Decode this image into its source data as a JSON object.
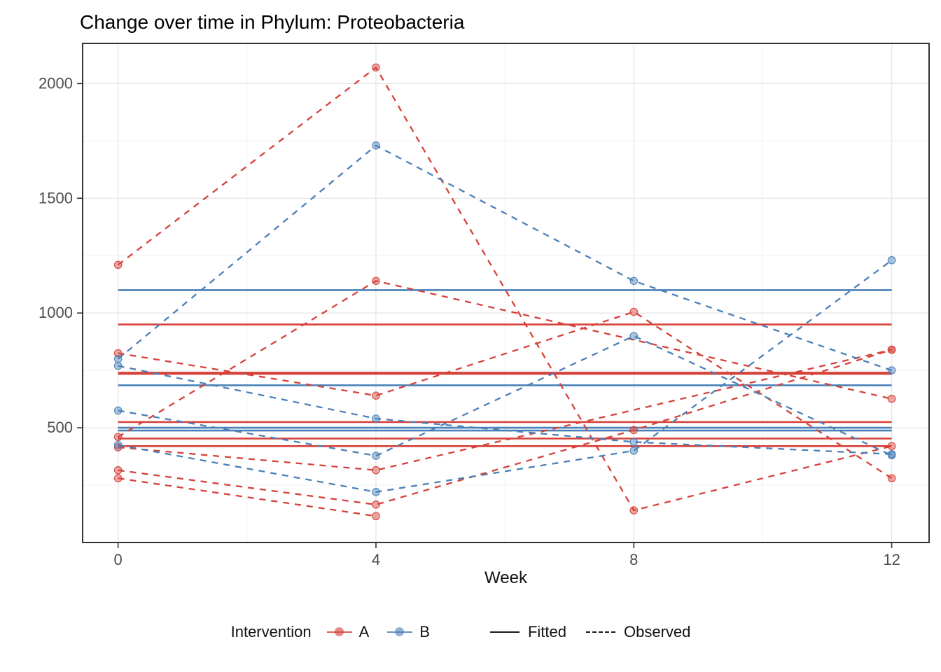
{
  "chart_data": {
    "type": "line",
    "title": "Change over time in Phylum: Proteobacteria",
    "xlabel": "Week",
    "ylabel": "",
    "x_ticks": [
      0,
      4,
      8,
      12
    ],
    "y_ticks": [
      500,
      1000,
      1500,
      2000
    ],
    "x_minor": [
      2,
      6,
      10
    ],
    "y_minor": [
      250,
      750,
      1250,
      1750
    ],
    "xlim": [
      -0.55,
      12.58
    ],
    "ylim": [
      0,
      2175
    ],
    "grid": "on",
    "legend_position": "bottom",
    "weeks": [
      0,
      4,
      8,
      12
    ],
    "subjects": [
      {
        "group": "A",
        "observed": [
          1210,
          2070,
          140,
          420
        ],
        "fitted": 950
      },
      {
        "group": "A",
        "observed": [
          825,
          640,
          1005,
          280
        ],
        "fitted": 740
      },
      {
        "group": "A",
        "observed": [
          460,
          1140,
          null,
          626
        ],
        "fitted": 735
      },
      {
        "group": "A",
        "observed": [
          415,
          315,
          null,
          840
        ],
        "fitted": 525
      },
      {
        "group": "A",
        "observed": [
          315,
          165,
          490,
          840
        ],
        "fitted": 453
      },
      {
        "group": "A",
        "observed": [
          280,
          115,
          null,
          null
        ],
        "fitted": 420
      },
      {
        "group": "B",
        "observed": [
          800,
          1730,
          1140,
          750
        ],
        "fitted": 1100
      },
      {
        "group": "B",
        "observed": [
          770,
          540,
          438,
          385
        ],
        "fitted": 500
      },
      {
        "group": "B",
        "observed": [
          575,
          378,
          900,
          380
        ],
        "fitted": 488
      },
      {
        "group": "B",
        "observed": [
          425,
          220,
          400,
          1230
        ],
        "fitted": 685
      }
    ],
    "legend": {
      "title": "Intervention",
      "groups": [
        {
          "label": "A",
          "color": "#d6413a"
        },
        {
          "label": "B",
          "color": "#4a80b8"
        }
      ],
      "linetypes": [
        {
          "label": "Fitted",
          "dash": "solid"
        },
        {
          "label": "Observed",
          "dash": "dashed"
        }
      ]
    },
    "colors": {
      "A": "#d6413a",
      "B": "#4a80b8",
      "grid_major": "#e6e6e6",
      "grid_minor": "#f1f1f1",
      "axis_text": "#4d4d4d",
      "panel_border": "#333333",
      "tick": "#333333",
      "title": "#000000"
    }
  }
}
